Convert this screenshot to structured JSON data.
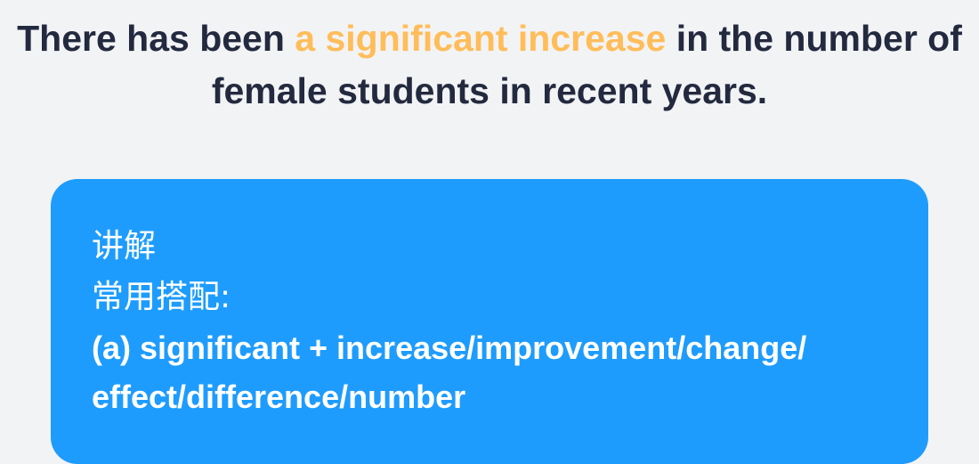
{
  "sentence": {
    "before": "There has been ",
    "highlight": "a significant increase",
    "after": " in the number of female students in recent years."
  },
  "explanation": {
    "heading": "讲解",
    "subheading": "常用搭配:",
    "line1": "(a) significant + increase/improvement/change/",
    "line2": "effect/difference/number"
  },
  "colors": {
    "highlight": "#ffbd59",
    "card": "#1e9cfd",
    "text": "#232a3f"
  }
}
